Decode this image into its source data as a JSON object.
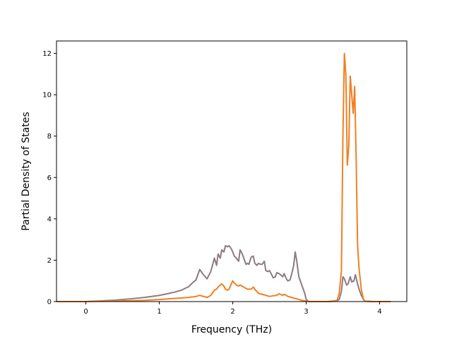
{
  "chart_data": {
    "type": "line",
    "title": "",
    "xlabel": "Frequency (THz)",
    "ylabel": "Partial Density of States",
    "xlim": [
      -0.4,
      4.37
    ],
    "ylim": [
      0,
      12.6
    ],
    "xticks": [
      0,
      1,
      2,
      3,
      4
    ],
    "yticks": [
      0,
      2,
      4,
      6,
      8,
      10,
      12
    ],
    "xtick_labels": [
      "0",
      "1",
      "2",
      "3",
      "4"
    ],
    "ytick_labels": [
      "0",
      "2",
      "4",
      "6",
      "8",
      "10",
      "12"
    ],
    "grid": false,
    "legend": "none",
    "series": [
      {
        "color": "#8c7b7f",
        "x": [
          -0.4,
          0.0,
          0.2,
          0.4,
          0.6,
          0.8,
          1.0,
          1.1,
          1.2,
          1.3,
          1.4,
          1.45,
          1.5,
          1.55,
          1.6,
          1.65,
          1.7,
          1.72,
          1.75,
          1.78,
          1.8,
          1.83,
          1.85,
          1.88,
          1.9,
          1.93,
          1.95,
          1.98,
          2.0,
          2.02,
          2.05,
          2.08,
          2.1,
          2.13,
          2.15,
          2.18,
          2.2,
          2.22,
          2.25,
          2.28,
          2.3,
          2.33,
          2.35,
          2.38,
          2.4,
          2.43,
          2.45,
          2.48,
          2.5,
          2.53,
          2.55,
          2.58,
          2.6,
          2.63,
          2.65,
          2.68,
          2.7,
          2.73,
          2.75,
          2.78,
          2.8,
          2.83,
          2.85,
          2.87,
          2.9,
          2.93,
          2.95,
          2.98,
          3.0,
          3.02,
          3.05,
          3.1,
          3.3,
          3.4,
          3.45,
          3.48,
          3.5,
          3.52,
          3.55,
          3.57,
          3.6,
          3.62,
          3.65,
          3.67,
          3.7,
          3.72,
          3.75,
          3.78,
          3.8,
          3.9,
          4.15
        ],
        "y": [
          0,
          0.0,
          0.03,
          0.07,
          0.13,
          0.2,
          0.3,
          0.37,
          0.45,
          0.55,
          0.72,
          0.9,
          1.05,
          1.55,
          1.3,
          1.1,
          1.45,
          1.7,
          2.1,
          1.75,
          2.3,
          2.1,
          2.5,
          2.4,
          2.7,
          2.65,
          2.7,
          2.55,
          2.4,
          2.2,
          2.1,
          1.95,
          2.5,
          2.3,
          2.1,
          1.8,
          1.85,
          1.8,
          2.15,
          2.2,
          1.85,
          1.75,
          1.85,
          1.8,
          1.8,
          1.95,
          1.5,
          1.45,
          1.5,
          1.3,
          1.15,
          1.2,
          1.4,
          1.35,
          1.3,
          1.2,
          1.35,
          1.1,
          1.0,
          1.05,
          1.3,
          1.75,
          2.4,
          2.0,
          1.2,
          0.9,
          0.7,
          0.4,
          0.1,
          0.03,
          0.0,
          0.0,
          0.0,
          0.02,
          0.1,
          0.5,
          1.2,
          1.1,
          0.8,
          0.85,
          1.2,
          0.95,
          1.0,
          1.3,
          0.85,
          0.6,
          0.3,
          0.1,
          0.02,
          0.0,
          0.0
        ]
      },
      {
        "color": "#f08020",
        "x": [
          -0.4,
          0.0,
          0.4,
          0.8,
          1.0,
          1.2,
          1.4,
          1.5,
          1.55,
          1.6,
          1.65,
          1.7,
          1.72,
          1.75,
          1.78,
          1.8,
          1.83,
          1.85,
          1.88,
          1.9,
          1.93,
          1.95,
          1.98,
          2.0,
          2.02,
          2.05,
          2.08,
          2.1,
          2.15,
          2.2,
          2.25,
          2.28,
          2.3,
          2.35,
          2.4,
          2.45,
          2.5,
          2.55,
          2.6,
          2.63,
          2.65,
          2.68,
          2.7,
          2.75,
          2.8,
          2.85,
          2.9,
          2.95,
          3.0,
          3.05,
          3.3,
          3.42,
          3.45,
          3.48,
          3.5,
          3.52,
          3.54,
          3.56,
          3.58,
          3.6,
          3.62,
          3.64,
          3.66,
          3.68,
          3.7,
          3.72,
          3.75,
          3.78,
          3.8,
          3.9,
          4.15
        ],
        "y": [
          0,
          0.0,
          0.02,
          0.06,
          0.1,
          0.15,
          0.2,
          0.25,
          0.3,
          0.25,
          0.2,
          0.3,
          0.4,
          0.55,
          0.6,
          0.7,
          0.8,
          0.85,
          0.75,
          0.6,
          0.55,
          0.6,
          0.85,
          1.0,
          0.9,
          0.8,
          0.75,
          0.8,
          0.7,
          0.6,
          0.6,
          0.7,
          0.6,
          0.4,
          0.35,
          0.3,
          0.25,
          0.28,
          0.3,
          0.38,
          0.35,
          0.3,
          0.35,
          0.25,
          0.2,
          0.15,
          0.1,
          0.05,
          0.02,
          0.0,
          0.0,
          0.05,
          0.4,
          1.5,
          8.0,
          12.0,
          11.0,
          6.6,
          7.5,
          10.9,
          10.0,
          9.1,
          10.4,
          7.0,
          2.7,
          1.6,
          0.6,
          0.1,
          0.02,
          0.0,
          0.0
        ]
      }
    ]
  }
}
